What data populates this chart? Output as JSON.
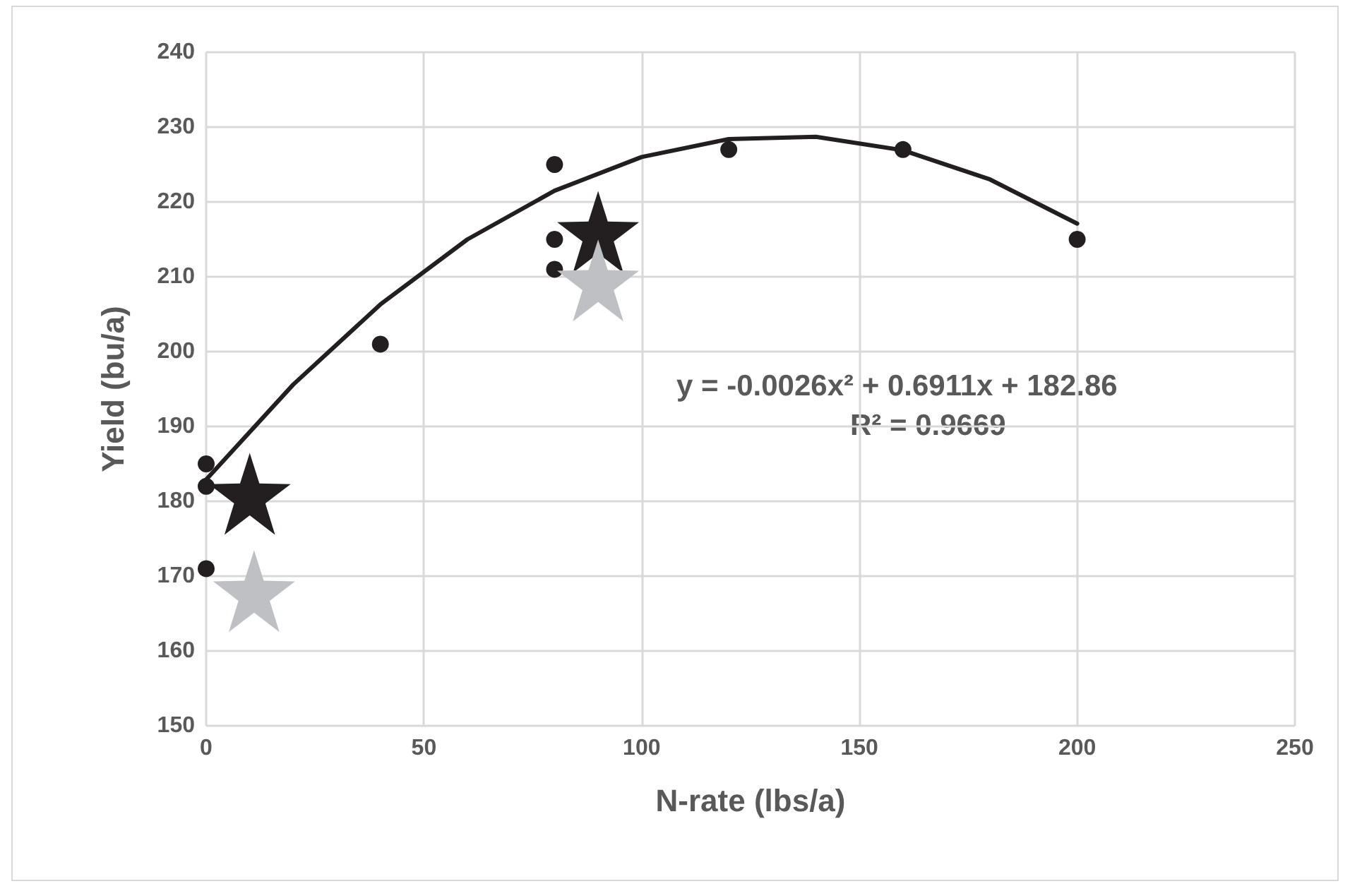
{
  "chart_data": {
    "type": "scatter",
    "xlabel": "N-rate (lbs/a)",
    "ylabel": "Yield (bu/a)",
    "xlim": [
      0,
      250
    ],
    "xticks": [
      0,
      50,
      100,
      150,
      200,
      250
    ],
    "ylim": [
      150,
      240
    ],
    "yticks": [
      150,
      160,
      170,
      180,
      190,
      200,
      210,
      220,
      230,
      240
    ],
    "grid": true,
    "annotations": [
      "y = -0.0026x² + 0.6911x + 182.86",
      "R² = 0.9669"
    ],
    "series": [
      {
        "color": "#231f20",
        "marker": "circle",
        "x": [
          0,
          0,
          40,
          80,
          80,
          120,
          160,
          200
        ],
        "values": [
          185,
          182,
          201,
          225,
          215,
          227,
          227,
          215
        ]
      },
      {
        "color": "#231f20",
        "marker": "circle",
        "x": [
          0,
          80
        ],
        "values": [
          171,
          211
        ]
      },
      {
        "color": "#231f20",
        "marker": "star",
        "x": [
          10,
          90
        ],
        "values": [
          181,
          216
        ]
      },
      {
        "color": "#bfc0c4",
        "marker": "star",
        "x": [
          11,
          90
        ],
        "values": [
          168,
          209.5
        ]
      },
      {
        "type": "line",
        "color": "#231f20",
        "marker": "none",
        "line_style": "solid",
        "x": [
          0,
          20,
          40,
          60,
          80,
          100,
          120,
          140,
          160,
          180,
          200
        ],
        "values": [
          182.9,
          195.6,
          206.3,
          215.0,
          221.5,
          226.0,
          228.4,
          228.7,
          226.9,
          223.0,
          217.1
        ]
      }
    ]
  }
}
